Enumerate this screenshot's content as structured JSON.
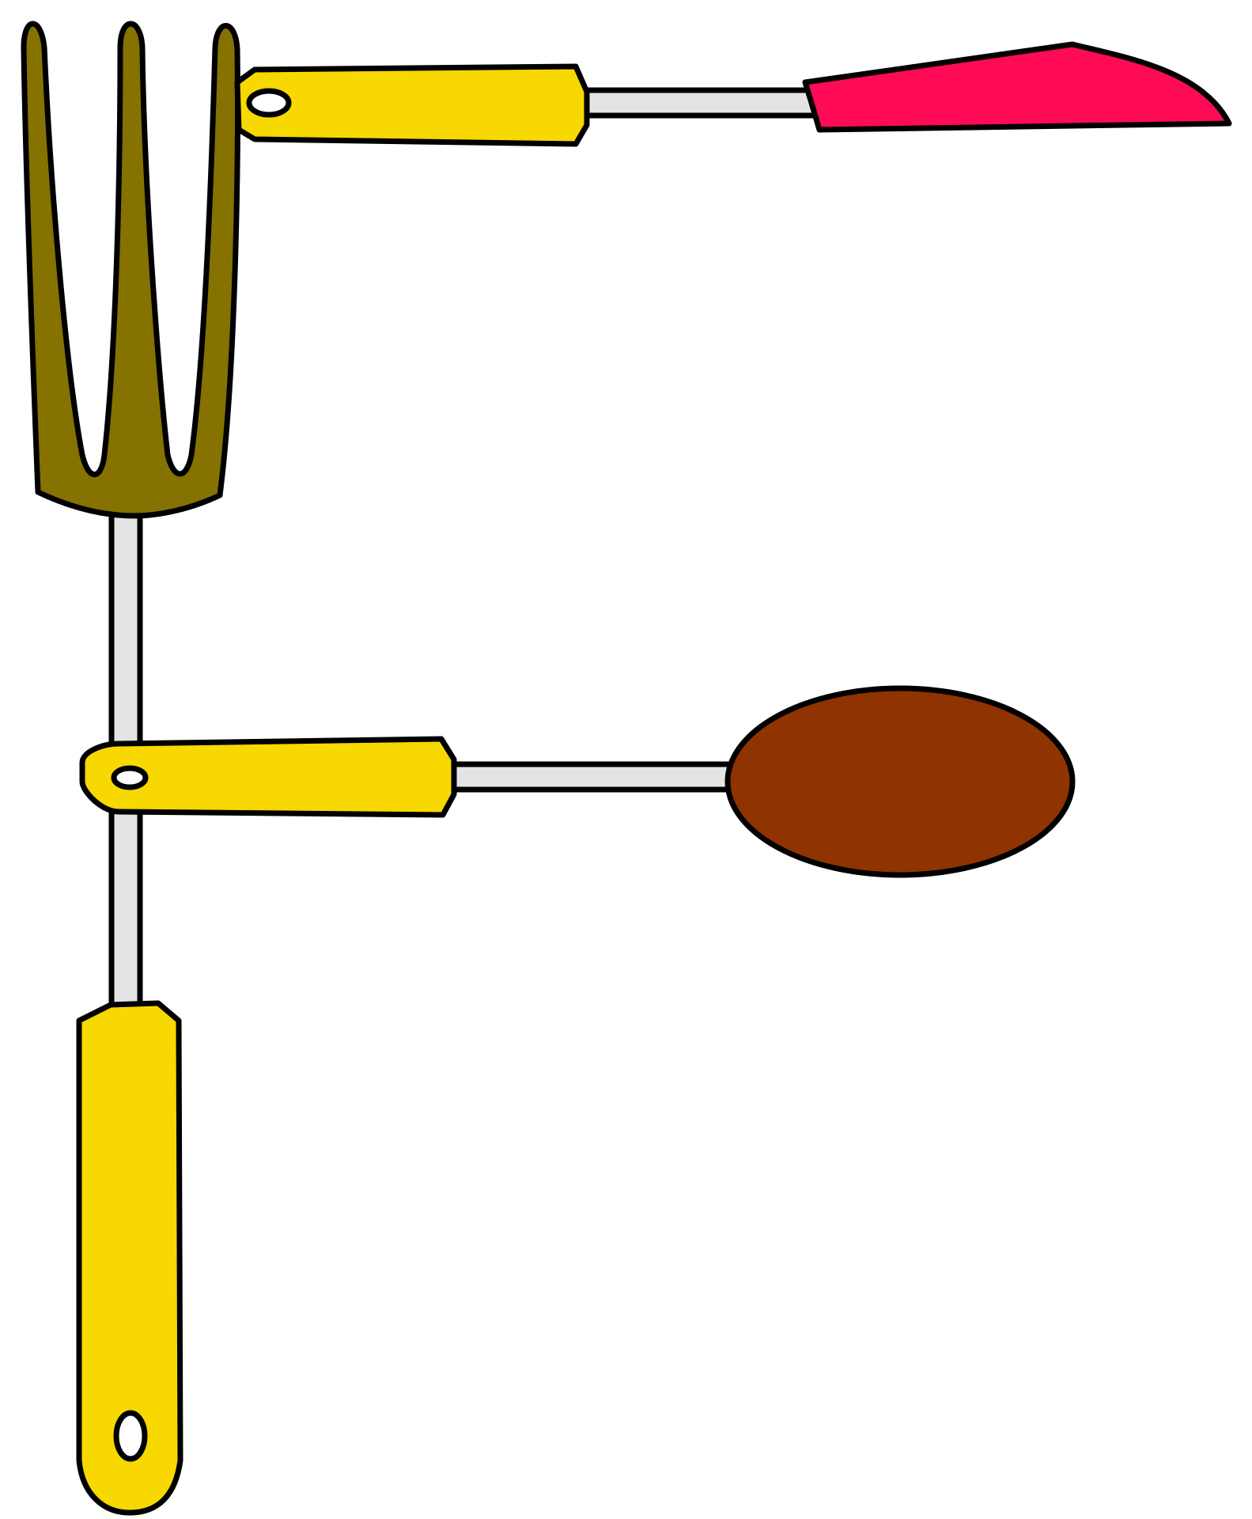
{
  "illustration": {
    "description_letter": "F",
    "colors": {
      "background": "#ffffff",
      "outline": "#000000",
      "fork_head": "#857200",
      "handle": "#f7d800",
      "rod": "#e4e4e4",
      "knife_blade": "#ff0a54",
      "spoon_bowl": "#8f3300",
      "hole": "#ffffff"
    },
    "icons": [
      "fork-icon",
      "knife-icon",
      "spoon-icon"
    ]
  }
}
